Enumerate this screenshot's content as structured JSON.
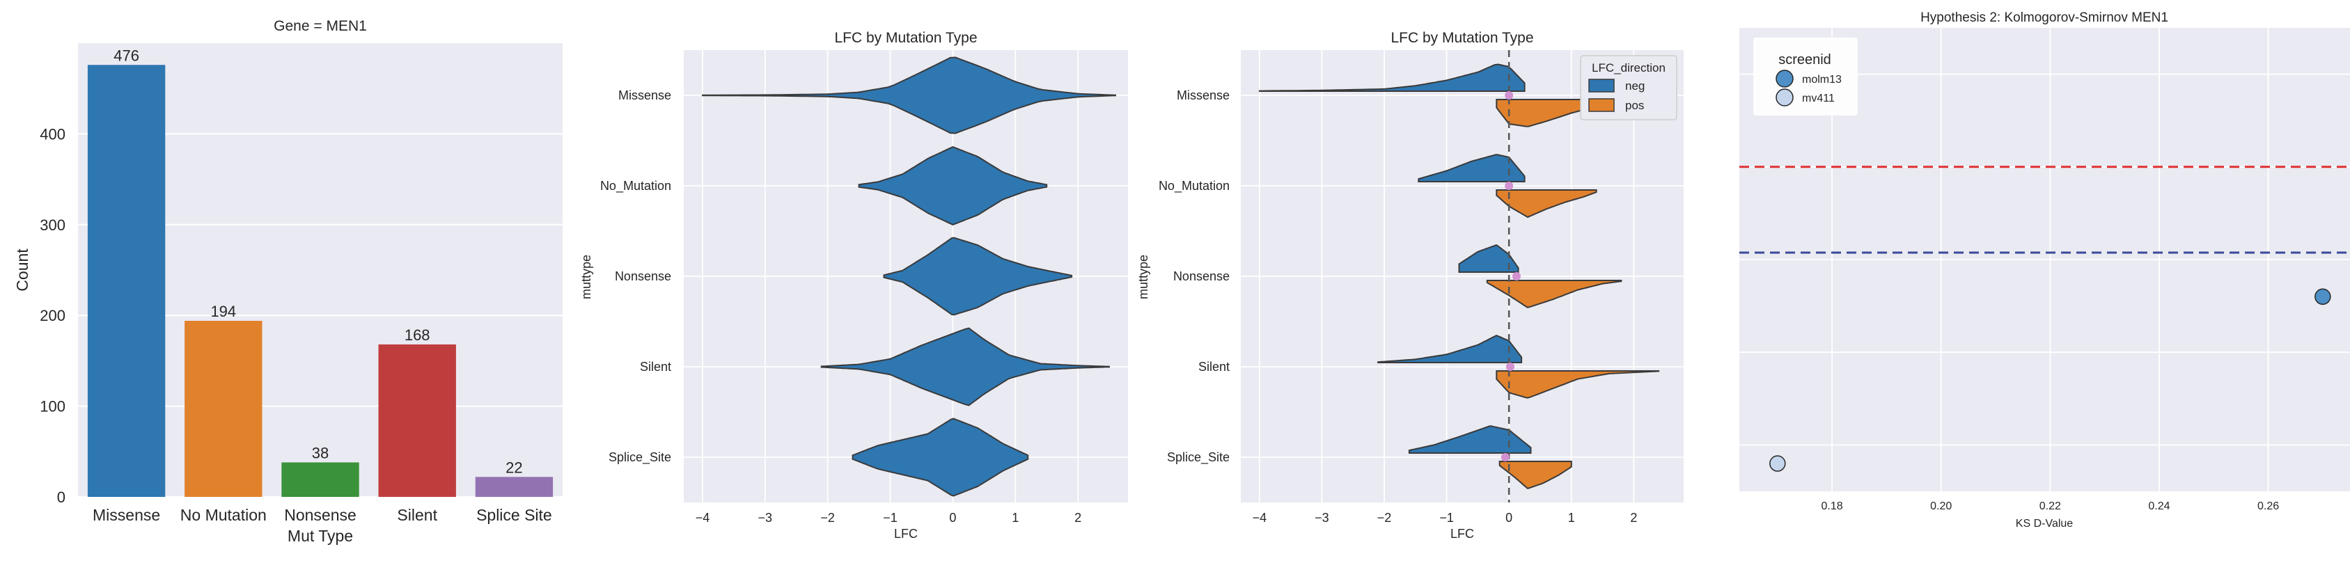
{
  "figure": {
    "background": "#ffffff",
    "panel_background": "#eaeaf2",
    "grid_color": "#ffffff"
  },
  "chart_data": [
    {
      "type": "bar",
      "title": "Gene = MEN1",
      "xlabel": "Mut Type",
      "ylabel": "Count",
      "categories": [
        "Missense",
        "No Mutation",
        "Nonsense",
        "Silent",
        "Splice Site"
      ],
      "values": [
        476,
        194,
        38,
        168,
        22
      ],
      "data_labels": [
        "476",
        "194",
        "38",
        "168",
        "22"
      ],
      "colors": [
        "#2e77b1",
        "#e1812c",
        "#3a923a",
        "#c03d3e",
        "#9372b2"
      ],
      "ylim": [
        0,
        500
      ],
      "yticks": [
        0,
        100,
        200,
        300,
        400
      ],
      "ytick_labels": [
        "0",
        "100",
        "200",
        "300",
        "400"
      ],
      "grid": true
    },
    {
      "type": "violin",
      "title": "LFC by Mutation Type",
      "xlabel": "LFC",
      "ylabel": "muttype",
      "categories": [
        "Missense",
        "No_Mutation",
        "Nonsense",
        "Silent",
        "Splice_Site"
      ],
      "xlim": [
        -4.3,
        2.8
      ],
      "xticks": [
        -4,
        -3,
        -2,
        -1,
        0,
        1,
        2
      ],
      "xtick_labels": [
        "−4",
        "−3",
        "−2",
        "−1",
        "0",
        "1",
        "2"
      ],
      "color": "#2e77b1",
      "grid": true,
      "violins": [
        {
          "category": "Missense",
          "min": -4.0,
          "max": 2.6,
          "profile": [
            [
              -4.0,
              0.005
            ],
            [
              -3.0,
              0.01
            ],
            [
              -2.0,
              0.03
            ],
            [
              -1.5,
              0.08
            ],
            [
              -1.0,
              0.22
            ],
            [
              -0.5,
              0.6
            ],
            [
              0.0,
              1.0
            ],
            [
              0.5,
              0.7
            ],
            [
              1.0,
              0.35
            ],
            [
              1.4,
              0.15
            ],
            [
              2.0,
              0.04
            ],
            [
              2.6,
              0.005
            ]
          ]
        },
        {
          "category": "No_Mutation",
          "min": -1.5,
          "max": 1.5,
          "profile": [
            [
              -1.5,
              0.03
            ],
            [
              -1.2,
              0.1
            ],
            [
              -0.8,
              0.3
            ],
            [
              -0.4,
              0.7
            ],
            [
              0.0,
              1.0
            ],
            [
              0.4,
              0.75
            ],
            [
              0.8,
              0.35
            ],
            [
              1.2,
              0.12
            ],
            [
              1.5,
              0.03
            ]
          ]
        },
        {
          "category": "Nonsense",
          "min": -1.1,
          "max": 1.9,
          "profile": [
            [
              -1.1,
              0.03
            ],
            [
              -0.8,
              0.15
            ],
            [
              -0.4,
              0.55
            ],
            [
              0.0,
              1.0
            ],
            [
              0.4,
              0.8
            ],
            [
              0.8,
              0.45
            ],
            [
              1.2,
              0.25
            ],
            [
              1.5,
              0.15
            ],
            [
              1.9,
              0.02
            ]
          ]
        },
        {
          "category": "Silent",
          "min": -2.1,
          "max": 2.5,
          "profile": [
            [
              -2.1,
              0.01
            ],
            [
              -1.5,
              0.06
            ],
            [
              -1.0,
              0.2
            ],
            [
              -0.5,
              0.55
            ],
            [
              0.0,
              0.85
            ],
            [
              0.25,
              1.0
            ],
            [
              0.5,
              0.7
            ],
            [
              0.9,
              0.3
            ],
            [
              1.4,
              0.08
            ],
            [
              2.0,
              0.03
            ],
            [
              2.5,
              0.005
            ]
          ]
        },
        {
          "category": "Splice_Site",
          "min": -1.6,
          "max": 1.2,
          "profile": [
            [
              -1.6,
              0.05
            ],
            [
              -1.2,
              0.3
            ],
            [
              -0.8,
              0.45
            ],
            [
              -0.4,
              0.6
            ],
            [
              0.0,
              1.0
            ],
            [
              0.4,
              0.75
            ],
            [
              0.8,
              0.35
            ],
            [
              1.2,
              0.05
            ]
          ]
        }
      ]
    },
    {
      "type": "split-violin",
      "title": "LFC by Mutation Type",
      "xlabel": "LFC",
      "ylabel": "muttype",
      "categories": [
        "Missense",
        "No_Mutation",
        "Nonsense",
        "Silent",
        "Splice_Site"
      ],
      "xlim": [
        -4.3,
        2.8
      ],
      "xticks": [
        -4,
        -3,
        -2,
        -1,
        0,
        1,
        2
      ],
      "xtick_labels": [
        "−4",
        "−3",
        "−2",
        "−1",
        "0",
        "1",
        "2"
      ],
      "reference_line_x": 0,
      "grid": true,
      "legend": {
        "title": "LFC_direction",
        "position": "top-right",
        "entries": [
          {
            "label": "neg",
            "color": "#2e77b1"
          },
          {
            "label": "pos",
            "color": "#e1812c"
          }
        ]
      },
      "mean_marker_color": "#d291d0",
      "mean_values": [
        0.0,
        0.0,
        0.12,
        0.02,
        -0.06
      ],
      "neg": [
        {
          "category": "Missense",
          "profile": [
            [
              -4.0,
              0.01
            ],
            [
              -3.0,
              0.03
            ],
            [
              -2.0,
              0.08
            ],
            [
              -1.5,
              0.2
            ],
            [
              -1.0,
              0.4
            ],
            [
              -0.5,
              0.7
            ],
            [
              -0.2,
              1.0
            ],
            [
              0.0,
              0.9
            ],
            [
              0.25,
              0.3
            ]
          ]
        },
        {
          "category": "No_Mutation",
          "profile": [
            [
              -1.45,
              0.1
            ],
            [
              -1.0,
              0.4
            ],
            [
              -0.6,
              0.75
            ],
            [
              -0.2,
              1.0
            ],
            [
              0.0,
              0.9
            ],
            [
              0.25,
              0.2
            ]
          ]
        },
        {
          "category": "Nonsense",
          "profile": [
            [
              -0.8,
              0.3
            ],
            [
              -0.5,
              0.75
            ],
            [
              -0.2,
              1.0
            ],
            [
              0.0,
              0.65
            ],
            [
              0.15,
              0.15
            ]
          ]
        },
        {
          "category": "Silent",
          "profile": [
            [
              -2.1,
              0.02
            ],
            [
              -1.5,
              0.12
            ],
            [
              -1.0,
              0.3
            ],
            [
              -0.5,
              0.65
            ],
            [
              -0.2,
              1.0
            ],
            [
              0.0,
              0.8
            ],
            [
              0.2,
              0.2
            ]
          ]
        },
        {
          "category": "Splice_Site",
          "profile": [
            [
              -1.6,
              0.1
            ],
            [
              -1.2,
              0.3
            ],
            [
              -0.8,
              0.6
            ],
            [
              -0.3,
              1.0
            ],
            [
              0.0,
              0.85
            ],
            [
              0.35,
              0.2
            ]
          ]
        }
      ],
      "pos": [
        {
          "category": "Missense",
          "profile": [
            [
              -0.2,
              0.3
            ],
            [
              0.0,
              0.9
            ],
            [
              0.3,
              1.0
            ],
            [
              0.6,
              0.8
            ],
            [
              1.0,
              0.5
            ],
            [
              1.4,
              0.25
            ],
            [
              2.0,
              0.08
            ],
            [
              2.5,
              0.01
            ]
          ]
        },
        {
          "category": "No_Mutation",
          "profile": [
            [
              -0.2,
              0.2
            ],
            [
              0.0,
              0.6
            ],
            [
              0.3,
              1.0
            ],
            [
              0.6,
              0.7
            ],
            [
              0.9,
              0.45
            ],
            [
              1.2,
              0.25
            ],
            [
              1.4,
              0.08
            ]
          ]
        },
        {
          "category": "Nonsense",
          "profile": [
            [
              -0.35,
              0.08
            ],
            [
              0.0,
              0.55
            ],
            [
              0.3,
              1.0
            ],
            [
              0.7,
              0.7
            ],
            [
              1.1,
              0.35
            ],
            [
              1.5,
              0.12
            ],
            [
              1.8,
              0.03
            ]
          ]
        },
        {
          "category": "Silent",
          "profile": [
            [
              -0.2,
              0.3
            ],
            [
              0.0,
              0.8
            ],
            [
              0.3,
              1.0
            ],
            [
              0.7,
              0.65
            ],
            [
              1.1,
              0.3
            ],
            [
              1.6,
              0.1
            ],
            [
              2.4,
              0.01
            ]
          ]
        },
        {
          "category": "Splice_Site",
          "profile": [
            [
              -0.15,
              0.15
            ],
            [
              0.1,
              0.6
            ],
            [
              0.3,
              1.0
            ],
            [
              0.55,
              0.8
            ],
            [
              0.8,
              0.5
            ],
            [
              1.0,
              0.2
            ]
          ]
        }
      ]
    },
    {
      "type": "scatter",
      "title": "Hypothesis 2: Kolmogorov-Smirnov MEN1",
      "xlabel": "KS D-Value",
      "ylabel": "",
      "xlim": [
        0.163,
        0.275
      ],
      "ylim": [
        0,
        1
      ],
      "xticks": [
        0.18,
        0.2,
        0.22,
        0.24,
        0.26
      ],
      "xtick_labels": [
        "0.18",
        "0.20",
        "0.22",
        "0.24",
        "0.26"
      ],
      "grid": true,
      "hlines": [
        {
          "y": 0.7,
          "color": "#e03030"
        },
        {
          "y": 0.515,
          "color": "#3a4a9a"
        }
      ],
      "legend": {
        "title": "screenid",
        "position": "top-left"
      },
      "series": [
        {
          "name": "molm13",
          "x": [
            0.27
          ],
          "y": [
            0.42
          ],
          "color": "#4d8fc6"
        },
        {
          "name": "mv411",
          "x": [
            0.17
          ],
          "y": [
            0.06
          ],
          "color": "#c4d5ec"
        }
      ]
    }
  ]
}
